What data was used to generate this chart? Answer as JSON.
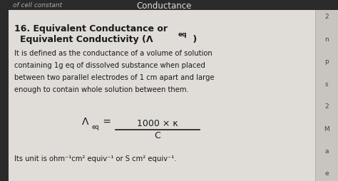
{
  "bg_color": "#3a3a3a",
  "paper_color": "#e0ddd8",
  "right_strip_color": "#c8c5c0",
  "left_border_color": "#2a2a2a",
  "title_top": "Conductance",
  "heading_number": "16.",
  "heading_line1": "Equivalent Conductance or",
  "heading_line2_prefix": "    Equivalent Conductivity (Λ",
  "heading_subscript": "eq",
  "heading_close": " )",
  "body_text_lines": [
    "It is defined as the conductance of a volume of solution",
    "containing 1g eq of dissolved substance when placed",
    "between two parallel electrodes of 1 cm apart and large",
    "enough to contain whole solution between them."
  ],
  "formula_lambda": "Λ",
  "formula_subscript": "eq",
  "formula_numerator": "1000 × κ",
  "formula_denominator": "C",
  "unit_line": "Its unit is ohm⁻¹cm² equiv⁻¹ or S cm² equiv⁻¹.",
  "top_partial_text": "of cell constant",
  "right_numbers": [
    "2",
    "n",
    "p",
    "s",
    "2",
    "M",
    "a",
    "e"
  ],
  "text_color": "#1a1a1a",
  "dim_text_color": "#666666",
  "title_fontsize": 8.5,
  "heading_fontsize": 9.0,
  "body_fontsize": 7.2,
  "formula_fontsize": 9.0,
  "unit_fontsize": 7.2
}
